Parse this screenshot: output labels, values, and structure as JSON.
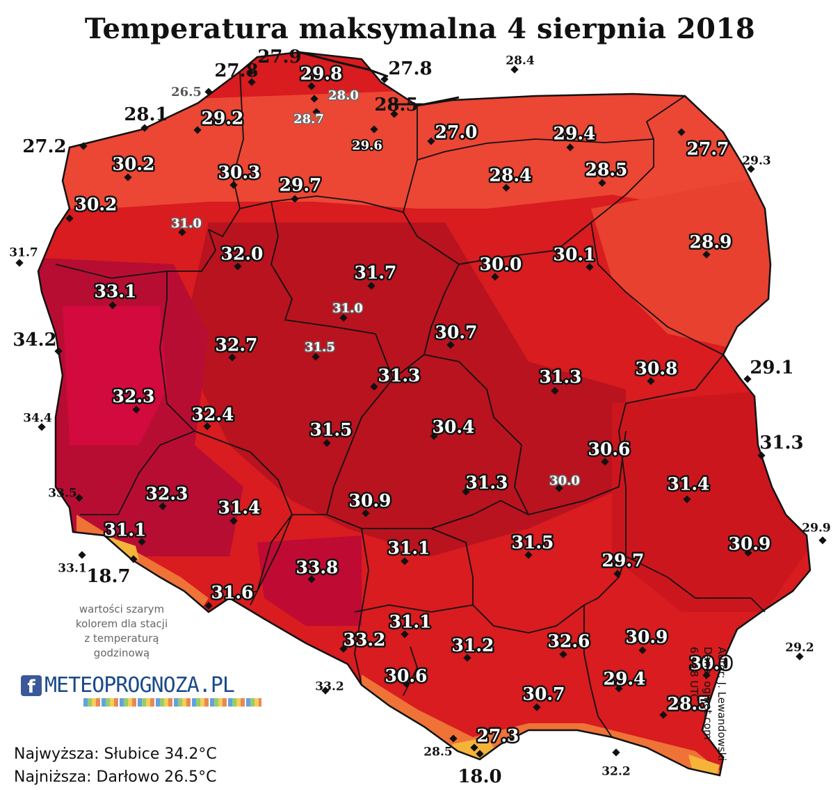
{
  "title": "Temperatura maksymalna 4 sierpnia 2018",
  "credits": {
    "author": "Autor: J. Lewandowski",
    "source": "Dane: oginet.com",
    "period": "6 - 18 UTC"
  },
  "note": {
    "line1": "wartości szarym",
    "line2": "kolorem dla stacji",
    "line3": "z temperaturą",
    "line4": "godzinową"
  },
  "logo": {
    "icon": "facebook-icon",
    "text": "METEOPROGNOZA.PL"
  },
  "stats": {
    "highest": "Najwyższa: Słubice 34.2°C",
    "lowest": "Najniższa: Darłowo 26.5°C"
  },
  "colors": {
    "coast": "#ee4a35",
    "north": "#e22a24",
    "central": "#ba1424",
    "west": "#b80f35",
    "mountains": "#f07838",
    "highland": "#f3b33c",
    "border": "#111111"
  },
  "stations": [
    {
      "label": "27.8",
      "style": "b"
    },
    {
      "label": "27.9",
      "style": "b"
    },
    {
      "label": "29.8",
      "style": "w"
    },
    {
      "label": "27.8",
      "style": "b"
    },
    {
      "label": "28.4",
      "style": "bs"
    },
    {
      "label": "26.5",
      "style": "g"
    },
    {
      "label": "28.0",
      "style": "wg"
    },
    {
      "label": "28.5",
      "style": "b"
    },
    {
      "label": "28.1",
      "style": "b"
    },
    {
      "label": "29.2",
      "style": "w"
    },
    {
      "label": "28.7",
      "style": "wg"
    },
    {
      "label": "27.2",
      "style": "b"
    },
    {
      "label": "29.6",
      "style": "ws"
    },
    {
      "label": "27.0",
      "style": "w"
    },
    {
      "label": "29.4",
      "style": "w"
    },
    {
      "label": "27.7",
      "style": "w"
    },
    {
      "label": "29.3",
      "style": "bs"
    },
    {
      "label": "30.2",
      "style": "w"
    },
    {
      "label": "30.3",
      "style": "w"
    },
    {
      "label": "29.7",
      "style": "w"
    },
    {
      "label": "28.4",
      "style": "w"
    },
    {
      "label": "28.5",
      "style": "w"
    },
    {
      "label": "30.2",
      "style": "w"
    },
    {
      "label": "31.0",
      "style": "wg"
    },
    {
      "label": "31.7",
      "style": "bs"
    },
    {
      "label": "32.0",
      "style": "w"
    },
    {
      "label": "28.9",
      "style": "w"
    },
    {
      "label": "30.0",
      "style": "w"
    },
    {
      "label": "30.1",
      "style": "w"
    },
    {
      "label": "31.7",
      "style": "w"
    },
    {
      "label": "33.1",
      "style": "w"
    },
    {
      "label": "31.0",
      "style": "wg"
    },
    {
      "label": "30.7",
      "style": "w"
    },
    {
      "label": "34.2",
      "style": "b"
    },
    {
      "label": "32.7",
      "style": "w"
    },
    {
      "label": "31.5",
      "style": "wg"
    },
    {
      "label": "31.3",
      "style": "w"
    },
    {
      "label": "31.3",
      "style": "w"
    },
    {
      "label": "30.8",
      "style": "w"
    },
    {
      "label": "29.1",
      "style": "b"
    },
    {
      "label": "32.3",
      "style": "w"
    },
    {
      "label": "34.4",
      "style": "bs"
    },
    {
      "label": "32.4",
      "style": "w"
    },
    {
      "label": "31.5",
      "style": "w"
    },
    {
      "label": "30.4",
      "style": "w"
    },
    {
      "label": "30.6",
      "style": "w"
    },
    {
      "label": "31.3",
      "style": "b"
    },
    {
      "label": "31.3",
      "style": "w"
    },
    {
      "label": "30.0",
      "style": "wg"
    },
    {
      "label": "31.4",
      "style": "w"
    },
    {
      "label": "33.5",
      "style": "bs"
    },
    {
      "label": "32.3",
      "style": "w"
    },
    {
      "label": "31.4",
      "style": "w"
    },
    {
      "label": "30.9",
      "style": "w"
    },
    {
      "label": "31.1",
      "style": "w"
    },
    {
      "label": "31.1",
      "style": "w"
    },
    {
      "label": "31.5",
      "style": "w"
    },
    {
      "label": "29.9",
      "style": "bs"
    },
    {
      "label": "30.9",
      "style": "w"
    },
    {
      "label": "29.7",
      "style": "w"
    },
    {
      "label": "33.1",
      "style": "bs"
    },
    {
      "label": "18.7",
      "style": "b"
    },
    {
      "label": "33.8",
      "style": "w"
    },
    {
      "label": "31.6",
      "style": "w"
    },
    {
      "label": "31.1",
      "style": "w"
    },
    {
      "label": "33.2",
      "style": "w"
    },
    {
      "label": "31.2",
      "style": "w"
    },
    {
      "label": "32.6",
      "style": "w"
    },
    {
      "label": "30.9",
      "style": "w"
    },
    {
      "label": "29.2",
      "style": "bs"
    },
    {
      "label": "30.0",
      "style": "w"
    },
    {
      "label": "33.2",
      "style": "bs"
    },
    {
      "label": "30.6",
      "style": "w"
    },
    {
      "label": "29.4",
      "style": "w"
    },
    {
      "label": "30.7",
      "style": "w"
    },
    {
      "label": "28.5",
      "style": "w"
    },
    {
      "label": "27.3",
      "style": "w"
    },
    {
      "label": "28.5",
      "style": "bs"
    },
    {
      "label": "32.2",
      "style": "bs"
    },
    {
      "label": "18.0",
      "style": "b"
    }
  ]
}
